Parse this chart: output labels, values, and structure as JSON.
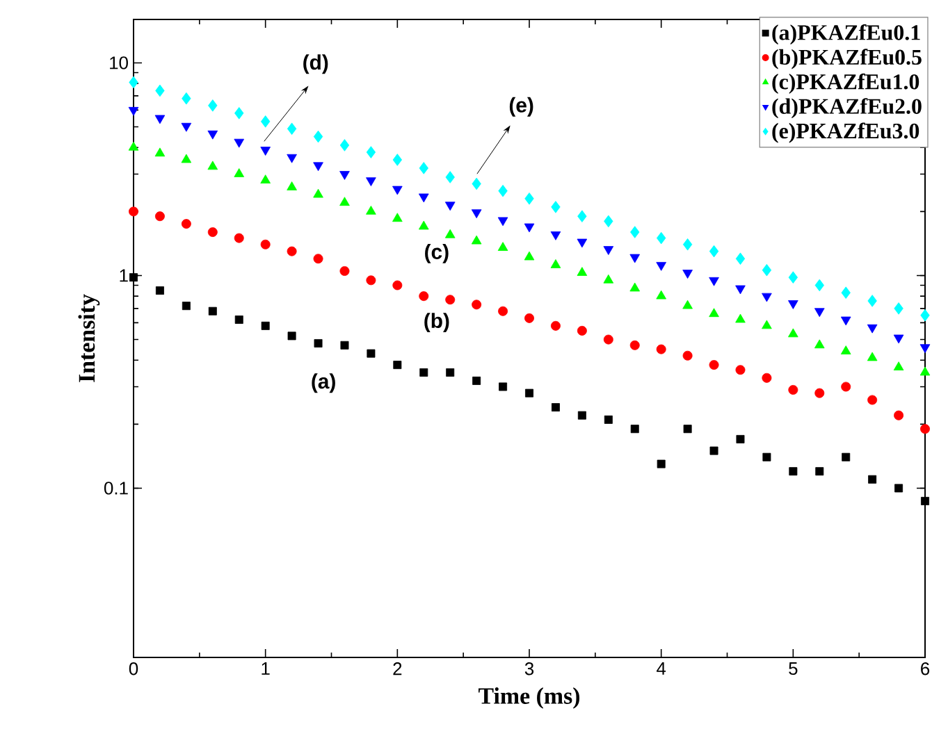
{
  "chart_data": {
    "type": "scatter",
    "xlabel": "Time (ms)",
    "ylabel": "Intensity",
    "log": true,
    "x": [
      0,
      0.2,
      0.4,
      0.6,
      0.8,
      1.0,
      1.2,
      1.4,
      1.6,
      1.8,
      2.0,
      2.2,
      2.4,
      2.6,
      2.8,
      3.0,
      3.2,
      3.4,
      3.6,
      3.8,
      4.0,
      4.2,
      4.4,
      4.6,
      4.8,
      5.0,
      5.2,
      5.4,
      5.6,
      5.8,
      6.0
    ],
    "series": [
      {
        "name": "(a)PKAZfEu0.1",
        "color": "#000000",
        "marker": "square",
        "values": [
          0.98,
          0.85,
          0.72,
          0.68,
          0.62,
          0.58,
          0.52,
          0.48,
          0.47,
          0.43,
          0.38,
          0.35,
          0.35,
          0.32,
          0.3,
          0.28,
          0.24,
          0.22,
          0.21,
          0.19,
          0.13,
          0.19,
          0.15,
          0.17,
          0.14,
          0.12,
          0.12,
          0.14,
          0.11,
          0.1,
          0.087
        ]
      },
      {
        "name": "(b)PKAZfEu0.5",
        "color": "#ff0000",
        "marker": "circle",
        "values": [
          2.0,
          1.9,
          1.75,
          1.6,
          1.5,
          1.4,
          1.3,
          1.2,
          1.05,
          0.95,
          0.9,
          0.8,
          0.77,
          0.73,
          0.68,
          0.63,
          0.58,
          0.55,
          0.5,
          0.47,
          0.45,
          0.42,
          0.38,
          0.36,
          0.33,
          0.29,
          0.28,
          0.3,
          0.26,
          0.22,
          0.19
        ]
      },
      {
        "name": "(c)PKAZfEu1.0",
        "color": "#00ff00",
        "marker": "triangle",
        "values": [
          4.0,
          3.75,
          3.5,
          3.25,
          3.0,
          2.8,
          2.6,
          2.4,
          2.2,
          2.0,
          1.85,
          1.7,
          1.55,
          1.45,
          1.35,
          1.22,
          1.12,
          1.03,
          0.95,
          0.87,
          0.8,
          0.72,
          0.66,
          0.62,
          0.58,
          0.53,
          0.47,
          0.44,
          0.41,
          0.37,
          0.35
        ]
      },
      {
        "name": "(d)PKAZfEu2.0",
        "color": "#0000ff",
        "marker": "triangle-down",
        "values": [
          6.0,
          5.5,
          5.05,
          4.65,
          4.25,
          3.9,
          3.6,
          3.3,
          3.0,
          2.8,
          2.55,
          2.35,
          2.15,
          1.98,
          1.82,
          1.7,
          1.56,
          1.44,
          1.33,
          1.22,
          1.12,
          1.03,
          0.95,
          0.87,
          0.8,
          0.74,
          0.68,
          0.62,
          0.57,
          0.51,
          0.46
        ]
      },
      {
        "name": "(e)PKAZfEu3.0",
        "color": "#00ffff",
        "marker": "diamond",
        "values": [
          8.1,
          7.4,
          6.8,
          6.3,
          5.8,
          5.3,
          4.9,
          4.5,
          4.1,
          3.8,
          3.5,
          3.2,
          2.9,
          2.7,
          2.5,
          2.3,
          2.1,
          1.9,
          1.8,
          1.6,
          1.5,
          1.4,
          1.3,
          1.2,
          1.06,
          0.98,
          0.9,
          0.83,
          0.76,
          0.7,
          0.65
        ]
      }
    ],
    "xlim": [
      0,
      6
    ],
    "xticks": [
      0,
      1,
      2,
      3,
      4,
      5,
      6
    ],
    "ylim": [
      0.016,
      16
    ],
    "yticks": [
      0.1,
      1,
      10
    ],
    "legend": "top right",
    "grid": false,
    "annotations": [
      "(a)",
      "(b)",
      "(c)",
      "(d)",
      "(e)"
    ]
  }
}
